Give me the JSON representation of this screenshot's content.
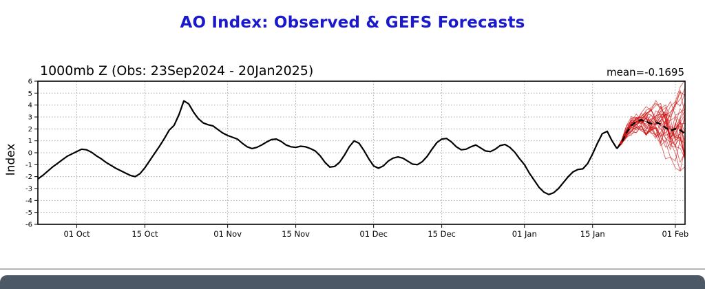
{
  "page": {
    "title": "AO Index: Observed & GEFS Forecasts"
  },
  "colors": {
    "title": "#1a1acc",
    "observed": "#000000",
    "ensemble": "#cc1111",
    "forecast_mean": "#000000",
    "grid": "#999999",
    "frame": "#000000",
    "divider": "#b5b5b5",
    "footer_bar": "#4d5866"
  },
  "chart": {
    "subtitle": "1000mb Z (Obs: 23Sep2024 - 20Jan2025)",
    "mean_label": "mean=-0.1695",
    "ylabel": "Index"
  },
  "chart_data": {
    "type": "line",
    "title": "AO Index: Observed & GEFS Forecasts",
    "subtitle": "1000mb Z (Obs: 23Sep2024 - 20Jan2025)",
    "ylabel": "Index",
    "ylim": [
      -6,
      6
    ],
    "y_ticks": [
      -6,
      -5,
      -4,
      -3,
      -2,
      -1,
      0,
      1,
      2,
      3,
      4,
      5,
      6
    ],
    "x_unit": "days since 23Sep2024",
    "x_range": [
      0,
      133
    ],
    "x_ticks": {
      "days": [
        8,
        22,
        39,
        53,
        69,
        83,
        100,
        114,
        131
      ],
      "labels": [
        "01 Oct",
        "15 Oct",
        "01 Nov",
        "15 Nov",
        "01 Dec",
        "15 Dec",
        "01 Jan",
        "15 Jan",
        "01 Feb"
      ]
    },
    "grid": {
      "horizontal": true,
      "vertical": true,
      "style": "dotted"
    },
    "annotations": [
      "mean=-0.1695"
    ],
    "observed": {
      "name": "Observed AO index (1000mb Z)",
      "start_day": 0,
      "end_date": "20Jan2025",
      "values": [
        -2.2,
        -1.9,
        -1.55,
        -1.2,
        -0.9,
        -0.6,
        -0.3,
        -0.1,
        0.1,
        0.3,
        0.25,
        0.05,
        -0.25,
        -0.5,
        -0.8,
        -1.05,
        -1.3,
        -1.5,
        -1.7,
        -1.9,
        -2.0,
        -1.75,
        -1.25,
        -0.65,
        -0.05,
        0.55,
        1.2,
        1.9,
        2.3,
        3.2,
        4.35,
        4.1,
        3.4,
        2.85,
        2.5,
        2.35,
        2.25,
        1.95,
        1.65,
        1.45,
        1.3,
        1.15,
        0.8,
        0.5,
        0.35,
        0.45,
        0.65,
        0.9,
        1.1,
        1.15,
        0.95,
        0.65,
        0.5,
        0.45,
        0.55,
        0.5,
        0.35,
        0.15,
        -0.25,
        -0.8,
        -1.2,
        -1.15,
        -0.8,
        -0.2,
        0.5,
        1.0,
        0.8,
        0.2,
        -0.5,
        -1.1,
        -1.3,
        -1.1,
        -0.7,
        -0.45,
        -0.35,
        -0.45,
        -0.7,
        -0.95,
        -1.0,
        -0.75,
        -0.3,
        0.3,
        0.85,
        1.15,
        1.2,
        0.9,
        0.5,
        0.25,
        0.3,
        0.5,
        0.65,
        0.4,
        0.15,
        0.1,
        0.3,
        0.6,
        0.7,
        0.45,
        0.05,
        -0.5,
        -1.0,
        -1.7,
        -2.3,
        -2.9,
        -3.3,
        -3.5,
        -3.35,
        -3.0,
        -2.5,
        -2.0,
        -1.6,
        -1.4,
        -1.35,
        -0.9,
        -0.1,
        0.8,
        1.6,
        1.8,
        1.0,
        0.35
      ]
    },
    "forecast": {
      "name": "GEFS ensemble forecast",
      "members": 30,
      "start_day": 119,
      "mean_values": [
        0.35,
        0.9,
        1.7,
        2.3,
        2.6,
        2.75,
        2.6,
        2.45,
        2.55,
        2.4,
        2.1,
        1.85,
        2.0,
        1.9,
        1.6
      ],
      "spread": [
        0.05,
        0.25,
        0.45,
        0.6,
        0.7,
        0.8,
        0.95,
        1.1,
        1.25,
        1.45,
        1.65,
        1.9,
        2.1,
        2.3,
        2.5
      ]
    }
  }
}
